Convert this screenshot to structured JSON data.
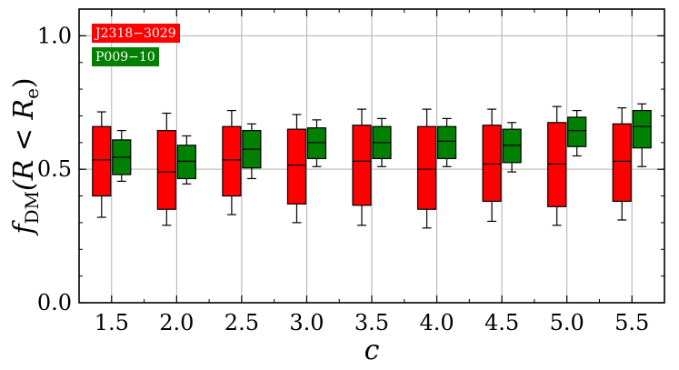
{
  "chart_data": {
    "type": "box",
    "categories": [
      "1.5",
      "2.0",
      "2.5",
      "3.0",
      "3.5",
      "4.0",
      "4.5",
      "5.0",
      "5.5"
    ],
    "xlabel": "c",
    "ylabel": {
      "prefix": "f",
      "subscript": "DM",
      "rest": "(R < R",
      "subscript2": "e",
      "close": ")"
    },
    "ylim": [
      0.0,
      1.1
    ],
    "yticks": [
      "0.0",
      "0.5",
      "1.0"
    ],
    "grid": true,
    "legend_position": "top-left",
    "series": [
      {
        "name": "J2318−3029",
        "color": "#ff0000",
        "boxes": [
          {
            "whislo": 0.32,
            "q1": 0.4,
            "med": 0.535,
            "q3": 0.66,
            "whishi": 0.715
          },
          {
            "whislo": 0.29,
            "q1": 0.35,
            "med": 0.49,
            "q3": 0.645,
            "whishi": 0.71
          },
          {
            "whislo": 0.33,
            "q1": 0.4,
            "med": 0.535,
            "q3": 0.66,
            "whishi": 0.72
          },
          {
            "whislo": 0.3,
            "q1": 0.37,
            "med": 0.515,
            "q3": 0.65,
            "whishi": 0.705
          },
          {
            "whislo": 0.29,
            "q1": 0.365,
            "med": 0.53,
            "q3": 0.665,
            "whishi": 0.725
          },
          {
            "whislo": 0.28,
            "q1": 0.35,
            "med": 0.5,
            "q3": 0.66,
            "whishi": 0.725
          },
          {
            "whislo": 0.305,
            "q1": 0.38,
            "med": 0.52,
            "q3": 0.665,
            "whishi": 0.725
          },
          {
            "whislo": 0.29,
            "q1": 0.36,
            "med": 0.52,
            "q3": 0.675,
            "whishi": 0.735
          },
          {
            "whislo": 0.31,
            "q1": 0.38,
            "med": 0.53,
            "q3": 0.67,
            "whishi": 0.73
          }
        ]
      },
      {
        "name": "P009−10",
        "color": "#008000",
        "boxes": [
          {
            "whislo": 0.455,
            "q1": 0.48,
            "med": 0.545,
            "q3": 0.61,
            "whishi": 0.645
          },
          {
            "whislo": 0.445,
            "q1": 0.465,
            "med": 0.53,
            "q3": 0.59,
            "whishi": 0.625
          },
          {
            "whislo": 0.465,
            "q1": 0.505,
            "med": 0.575,
            "q3": 0.645,
            "whishi": 0.67
          },
          {
            "whislo": 0.51,
            "q1": 0.54,
            "med": 0.6,
            "q3": 0.655,
            "whishi": 0.685
          },
          {
            "whislo": 0.51,
            "q1": 0.54,
            "med": 0.6,
            "q3": 0.66,
            "whishi": 0.69
          },
          {
            "whislo": 0.51,
            "q1": 0.54,
            "med": 0.605,
            "q3": 0.66,
            "whishi": 0.69
          },
          {
            "whislo": 0.49,
            "q1": 0.525,
            "med": 0.59,
            "q3": 0.65,
            "whishi": 0.675
          },
          {
            "whislo": 0.55,
            "q1": 0.585,
            "med": 0.645,
            "q3": 0.695,
            "whishi": 0.72
          },
          {
            "whislo": 0.51,
            "q1": 0.58,
            "med": 0.66,
            "q3": 0.72,
            "whishi": 0.745
          }
        ]
      }
    ]
  }
}
